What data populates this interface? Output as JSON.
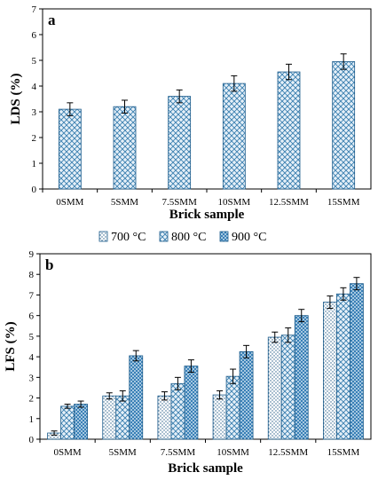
{
  "colors": {
    "frame": "#000000",
    "bar_edge": "#1a5a8a",
    "bar_fill": "#7fb5d5",
    "error": "#000000"
  },
  "chart_data": [
    {
      "type": "bar",
      "panel_label": "a",
      "categories": [
        "0SMM",
        "5SMM",
        "7.5SMM",
        "10SMM",
        "12.5SMM",
        "15SMM"
      ],
      "xlabel": "Brick sample",
      "ylabel": "LDS (%)",
      "ylim": [
        0,
        7
      ],
      "yticks": [
        0,
        1,
        2,
        3,
        4,
        5,
        6,
        7
      ],
      "grid": false,
      "series": [
        {
          "values": [
            3.1,
            3.2,
            3.6,
            4.1,
            4.55,
            4.95
          ],
          "errors": [
            0.25,
            0.25,
            0.25,
            0.3,
            0.3,
            0.3
          ],
          "pattern": "crosshatch"
        }
      ]
    },
    {
      "type": "bar",
      "panel_label": "b",
      "categories": [
        "0SMM",
        "5SMM",
        "7.5SMM",
        "10SMM",
        "12.5SMM",
        "15SMM"
      ],
      "xlabel": "Brick sample",
      "ylabel": "LFS  (%)",
      "ylim": [
        0,
        9
      ],
      "yticks": [
        0,
        1,
        2,
        3,
        4,
        5,
        6,
        7,
        8,
        9
      ],
      "grid": false,
      "legend": "top",
      "series": [
        {
          "name": "700 °C",
          "values": [
            0.3,
            2.1,
            2.1,
            2.15,
            4.95,
            6.65
          ],
          "errors": [
            0.1,
            0.15,
            0.2,
            0.2,
            0.25,
            0.3
          ],
          "pattern": "dots"
        },
        {
          "name": "800 °C",
          "values": [
            1.6,
            2.1,
            2.7,
            3.05,
            5.05,
            7.05
          ],
          "errors": [
            0.1,
            0.25,
            0.3,
            0.35,
            0.35,
            0.3
          ],
          "pattern": "crosshatch"
        },
        {
          "name": "900 °C",
          "values": [
            1.7,
            4.05,
            3.55,
            4.25,
            6.0,
            7.55
          ],
          "errors": [
            0.15,
            0.25,
            0.3,
            0.3,
            0.3,
            0.3
          ],
          "pattern": "dense"
        }
      ]
    }
  ]
}
